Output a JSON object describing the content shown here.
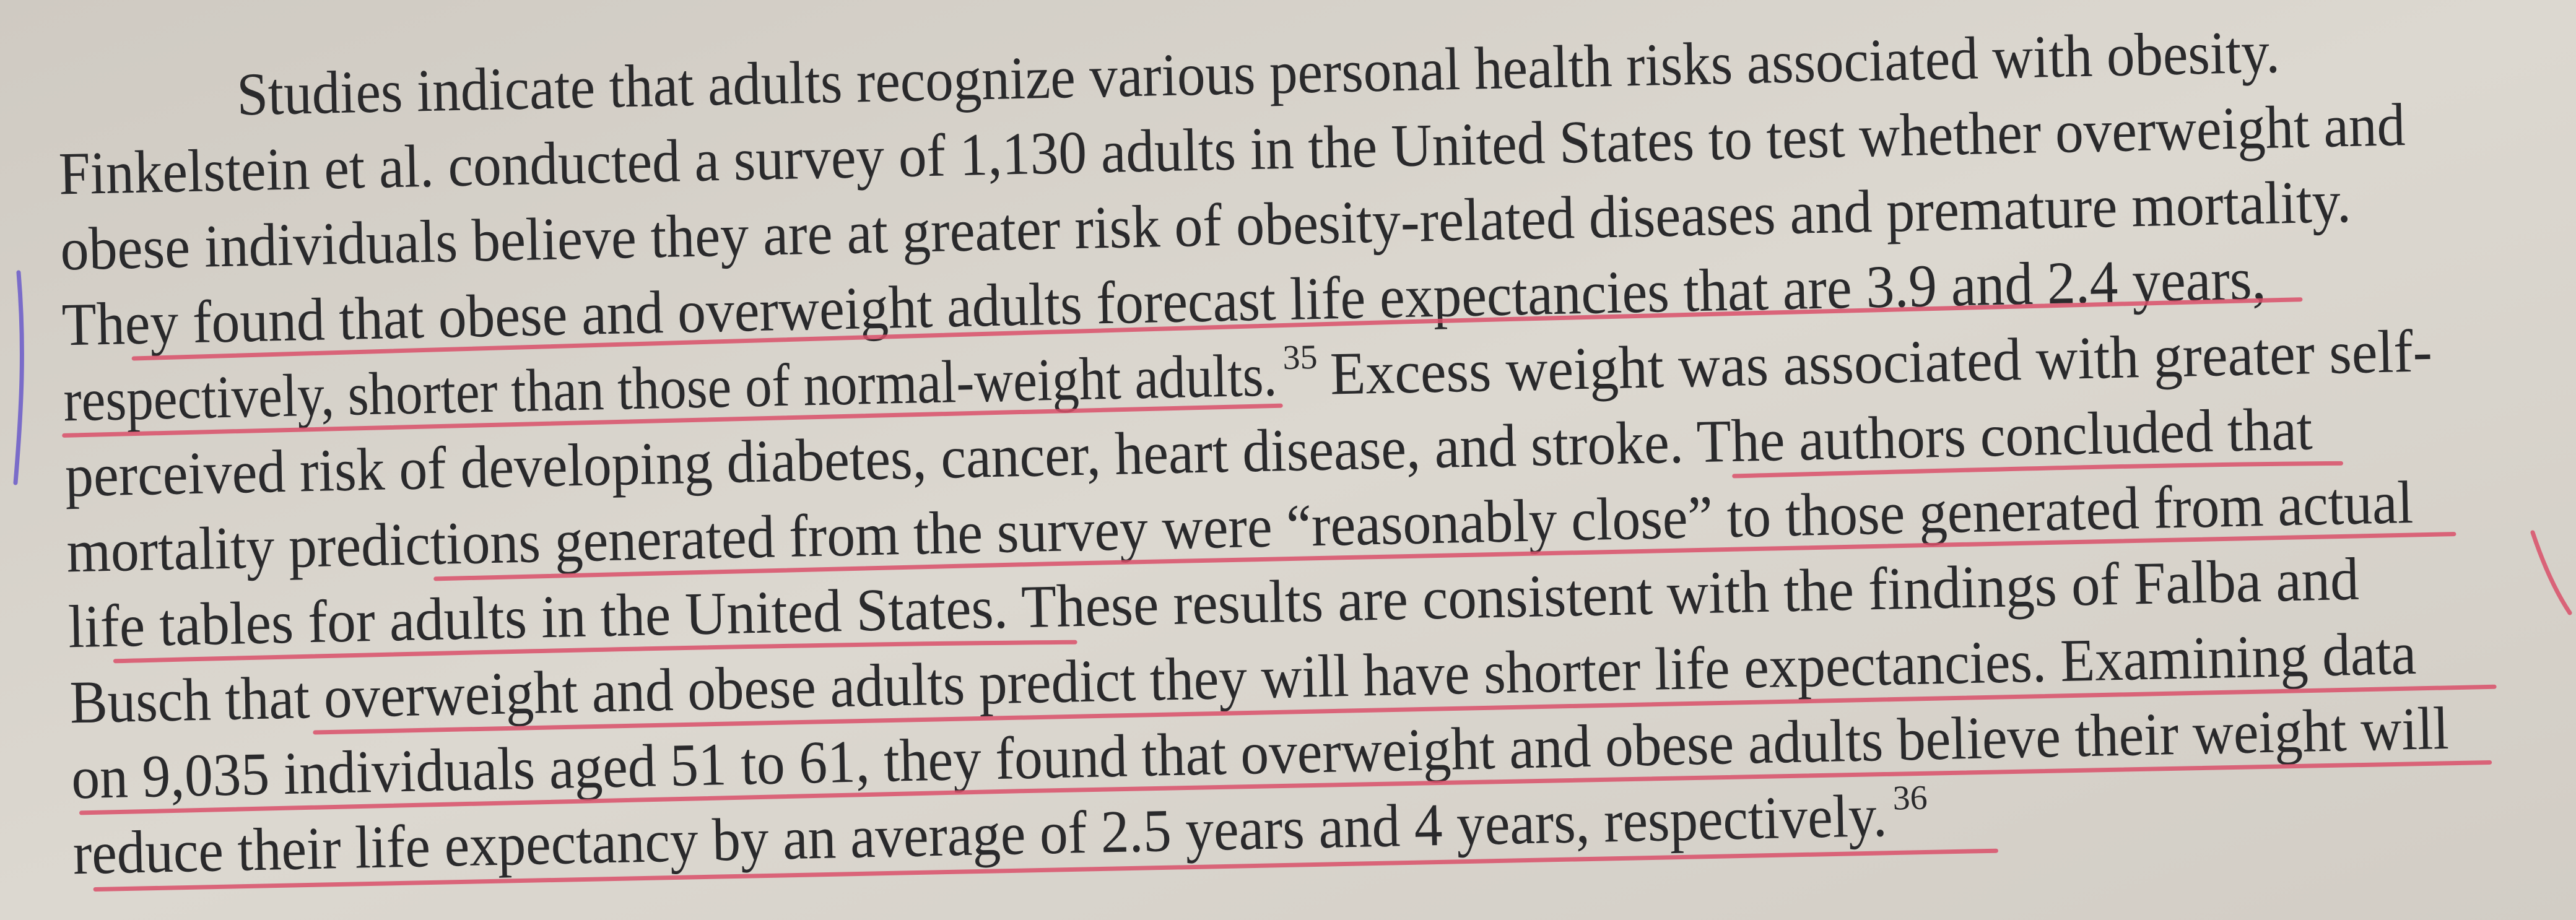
{
  "paragraph": {
    "lines": [
      {
        "text": "Studies indicate that adults recognize various personal health risks associated with obesity."
      },
      {
        "text": "Finkelstein et al. conducted a survey of 1,130 adults in the United States to test whether overweight and"
      },
      {
        "text": "obese individuals believe they are at greater risk of obesity-related diseases and premature mortality."
      },
      {
        "text": "They found that obese and overweight adults forecast life expectancies that are 3.9 and 2.4 years,"
      },
      {
        "text": "respectively, shorter than those of normal-weight adults.",
        "note": "35",
        "rest": "Excess weight was associated with greater self-"
      },
      {
        "text": "perceived risk of developing diabetes, cancer, heart disease, and stroke. The authors concluded that"
      },
      {
        "text": "mortality predictions generated from the survey were “reasonably close” to those generated from actual"
      },
      {
        "text": "life tables for adults in the United States. These results are consistent with the findings of Falba and"
      },
      {
        "text": "Busch that overweight and obese adults predict they will have shorter life expectancies. Examining data"
      },
      {
        "text": "on 9,035 individuals aged 51 to 61, they found that overweight and obese adults believe their weight will"
      },
      {
        "text": "reduce their life expectancy by an average of 2.5 years and 4 years, respectively.",
        "note": "36"
      }
    ]
  }
}
